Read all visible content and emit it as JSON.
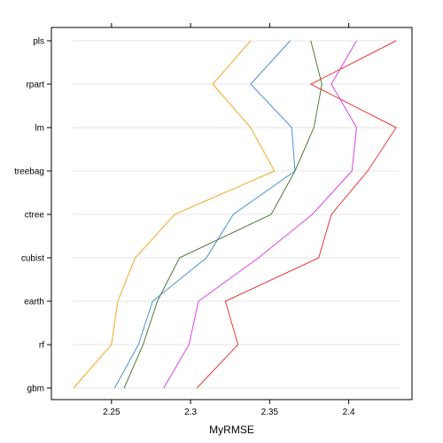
{
  "chart_data": {
    "type": "line",
    "title": "",
    "xlabel": "MyRMSE",
    "ylabel": "",
    "xlim": [
      2.212,
      2.44
    ],
    "x_ticks": [
      2.25,
      2.3,
      2.35,
      2.4
    ],
    "x_tick_labels": [
      "2.25",
      "2.3",
      "2.35",
      "2.4"
    ],
    "categories": [
      "gbm",
      "rf",
      "earth",
      "cubist",
      "ctree",
      "treebag",
      "lm",
      "rpart",
      "pls"
    ],
    "grid": true,
    "legend": "none",
    "series": [
      {
        "color": "#F5A623",
        "values": [
          2.226,
          2.25,
          2.254,
          2.265,
          2.29,
          2.353,
          2.338,
          2.314,
          2.338
        ]
      },
      {
        "color": "#4A90D9",
        "values": [
          2.252,
          2.267,
          2.276,
          2.31,
          2.327,
          2.366,
          2.364,
          2.338,
          2.363
        ]
      },
      {
        "color": "#4E7A3C",
        "values": [
          2.258,
          2.27,
          2.279,
          2.293,
          2.351,
          2.366,
          2.378,
          2.383,
          2.376
        ]
      },
      {
        "color": "#E040E8",
        "values": [
          2.283,
          2.299,
          2.305,
          2.343,
          2.377,
          2.402,
          2.405,
          2.389,
          2.405
        ]
      },
      {
        "color": "#E53935",
        "values": [
          2.304,
          2.33,
          2.322,
          2.381,
          2.389,
          2.412,
          2.43,
          2.376,
          2.43
        ]
      }
    ]
  }
}
